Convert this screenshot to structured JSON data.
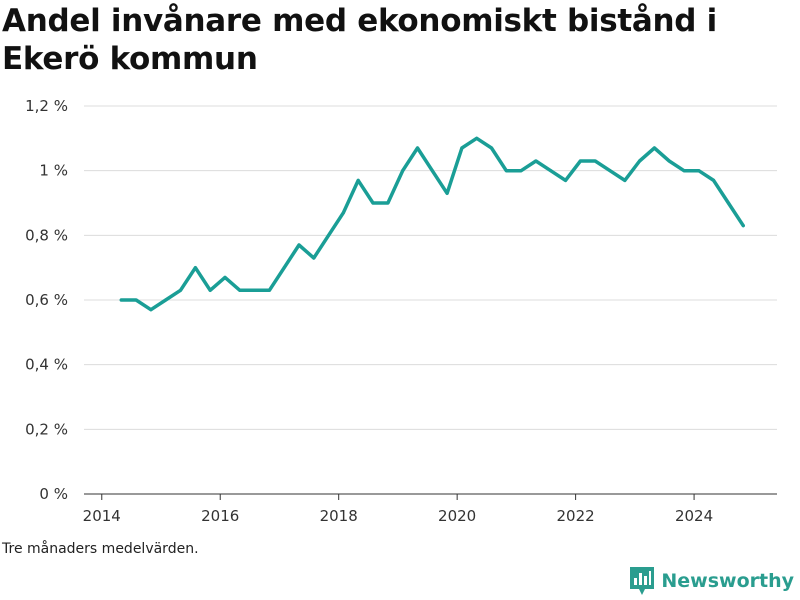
{
  "title": "Andel invånare med ekonomiskt bistånd i Ekerö kommun",
  "footnote": "Tre månaders medelvärden.",
  "brand": {
    "name": "Newsworthy",
    "icon": "newsworthy-logo-icon",
    "color": "#2a9d8f"
  },
  "colors": {
    "line": "#1a9e96",
    "grid": "#dcdcdc",
    "axis": "#333333"
  },
  "chart_data": {
    "type": "line",
    "title": "Andel invånare med ekonomiskt bistånd i Ekerö kommun",
    "xlabel": "",
    "ylabel": "",
    "x_ticks": [
      2014,
      2016,
      2018,
      2020,
      2022,
      2024
    ],
    "x_tick_labels": [
      "2014",
      "2016",
      "2018",
      "2020",
      "2022",
      "2024"
    ],
    "y_ticks": [
      0,
      0.2,
      0.4,
      0.6,
      0.8,
      1.0,
      1.2
    ],
    "y_tick_labels": [
      "0 %",
      "0,2 %",
      "0,4 %",
      "0,6 %",
      "0,8 %",
      "1 %",
      "1,2 %"
    ],
    "xlim": [
      2013.7,
      2025.4
    ],
    "ylim": [
      0,
      1.2
    ],
    "grid": true,
    "series": [
      {
        "values": [
          {
            "x": 2014.33,
            "y": 0.6
          },
          {
            "x": 2014.58,
            "y": 0.6
          },
          {
            "x": 2014.83,
            "y": 0.57
          },
          {
            "x": 2015.08,
            "y": 0.6
          },
          {
            "x": 2015.33,
            "y": 0.63
          },
          {
            "x": 2015.58,
            "y": 0.7
          },
          {
            "x": 2015.83,
            "y": 0.63
          },
          {
            "x": 2016.08,
            "y": 0.67
          },
          {
            "x": 2016.33,
            "y": 0.63
          },
          {
            "x": 2016.58,
            "y": 0.63
          },
          {
            "x": 2016.83,
            "y": 0.63
          },
          {
            "x": 2017.08,
            "y": 0.7
          },
          {
            "x": 2017.33,
            "y": 0.77
          },
          {
            "x": 2017.58,
            "y": 0.73
          },
          {
            "x": 2017.83,
            "y": 0.8
          },
          {
            "x": 2018.08,
            "y": 0.87
          },
          {
            "x": 2018.33,
            "y": 0.97
          },
          {
            "x": 2018.58,
            "y": 0.9
          },
          {
            "x": 2018.83,
            "y": 0.9
          },
          {
            "x": 2019.08,
            "y": 1.0
          },
          {
            "x": 2019.33,
            "y": 1.07
          },
          {
            "x": 2019.58,
            "y": 1.0
          },
          {
            "x": 2019.83,
            "y": 0.93
          },
          {
            "x": 2020.08,
            "y": 1.07
          },
          {
            "x": 2020.33,
            "y": 1.1
          },
          {
            "x": 2020.58,
            "y": 1.07
          },
          {
            "x": 2020.83,
            "y": 1.0
          },
          {
            "x": 2021.08,
            "y": 1.0
          },
          {
            "x": 2021.33,
            "y": 1.03
          },
          {
            "x": 2021.58,
            "y": 1.0
          },
          {
            "x": 2021.83,
            "y": 0.97
          },
          {
            "x": 2022.08,
            "y": 1.03
          },
          {
            "x": 2022.33,
            "y": 1.03
          },
          {
            "x": 2022.58,
            "y": 1.0
          },
          {
            "x": 2022.83,
            "y": 0.97
          },
          {
            "x": 2023.08,
            "y": 1.03
          },
          {
            "x": 2023.33,
            "y": 1.07
          },
          {
            "x": 2023.58,
            "y": 1.03
          },
          {
            "x": 2023.83,
            "y": 1.0
          },
          {
            "x": 2024.08,
            "y": 1.0
          },
          {
            "x": 2024.33,
            "y": 0.97
          },
          {
            "x": 2024.58,
            "y": 0.9
          },
          {
            "x": 2024.83,
            "y": 0.83
          }
        ]
      }
    ]
  }
}
